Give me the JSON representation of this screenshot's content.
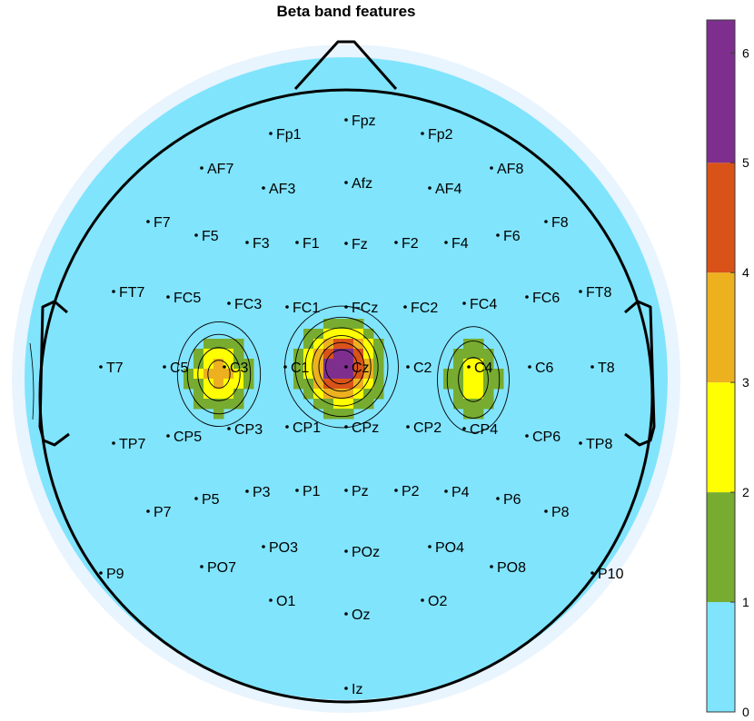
{
  "chart_data": {
    "type": "heatmap",
    "title": "Beta band features",
    "colorbar": {
      "range": [
        0,
        6.3
      ],
      "ticks": [
        "0",
        "1",
        "2",
        "3",
        "4",
        "5",
        "6"
      ],
      "bins": [
        {
          "from": 0,
          "to": 1,
          "color": "#80e4fc"
        },
        {
          "from": 1,
          "to": 2,
          "color": "#77ac30"
        },
        {
          "from": 2,
          "to": 3,
          "color": "#ffff00"
        },
        {
          "from": 3,
          "to": 4,
          "color": "#edb120"
        },
        {
          "from": 4,
          "to": 5,
          "color": "#d95319"
        },
        {
          "from": 5,
          "to": 6.3,
          "color": "#7e2f8e"
        }
      ]
    },
    "background_color": "#80e4fc",
    "outer_ring_color": "#e8f4fe",
    "hotspots": [
      {
        "channel": "C3",
        "peak": 3.5
      },
      {
        "channel": "Cz",
        "peak": 6.2
      },
      {
        "channel": "C4",
        "peak": 2.8
      }
    ],
    "electrodes": [
      {
        "name": "Fpz"
      },
      {
        "name": "Fp1"
      },
      {
        "name": "Fp2"
      },
      {
        "name": "AF7"
      },
      {
        "name": "AF3"
      },
      {
        "name": "Afz"
      },
      {
        "name": "AF4"
      },
      {
        "name": "AF8"
      },
      {
        "name": "F7"
      },
      {
        "name": "F5"
      },
      {
        "name": "F3"
      },
      {
        "name": "F1"
      },
      {
        "name": "Fz"
      },
      {
        "name": "F2"
      },
      {
        "name": "F4"
      },
      {
        "name": "F6"
      },
      {
        "name": "F8"
      },
      {
        "name": "FT7"
      },
      {
        "name": "FC5"
      },
      {
        "name": "FC3"
      },
      {
        "name": "FC1"
      },
      {
        "name": "FCz"
      },
      {
        "name": "FC2"
      },
      {
        "name": "FC4"
      },
      {
        "name": "FC6"
      },
      {
        "name": "FT8"
      },
      {
        "name": "T7"
      },
      {
        "name": "C5"
      },
      {
        "name": "C3"
      },
      {
        "name": "C1"
      },
      {
        "name": "Cz"
      },
      {
        "name": "C2"
      },
      {
        "name": "C4"
      },
      {
        "name": "C6"
      },
      {
        "name": "T8"
      },
      {
        "name": "TP7"
      },
      {
        "name": "CP5"
      },
      {
        "name": "CP3"
      },
      {
        "name": "CP1"
      },
      {
        "name": "CPz"
      },
      {
        "name": "CP2"
      },
      {
        "name": "CP4"
      },
      {
        "name": "CP6"
      },
      {
        "name": "TP8"
      },
      {
        "name": "P7"
      },
      {
        "name": "P5"
      },
      {
        "name": "P3"
      },
      {
        "name": "P1"
      },
      {
        "name": "Pz"
      },
      {
        "name": "P2"
      },
      {
        "name": "P4"
      },
      {
        "name": "P6"
      },
      {
        "name": "P8"
      },
      {
        "name": "P9"
      },
      {
        "name": "PO7"
      },
      {
        "name": "PO3"
      },
      {
        "name": "POz"
      },
      {
        "name": "PO4"
      },
      {
        "name": "PO8"
      },
      {
        "name": "P10"
      },
      {
        "name": "O1"
      },
      {
        "name": "Oz"
      },
      {
        "name": "O2"
      },
      {
        "name": "Iz"
      }
    ]
  }
}
